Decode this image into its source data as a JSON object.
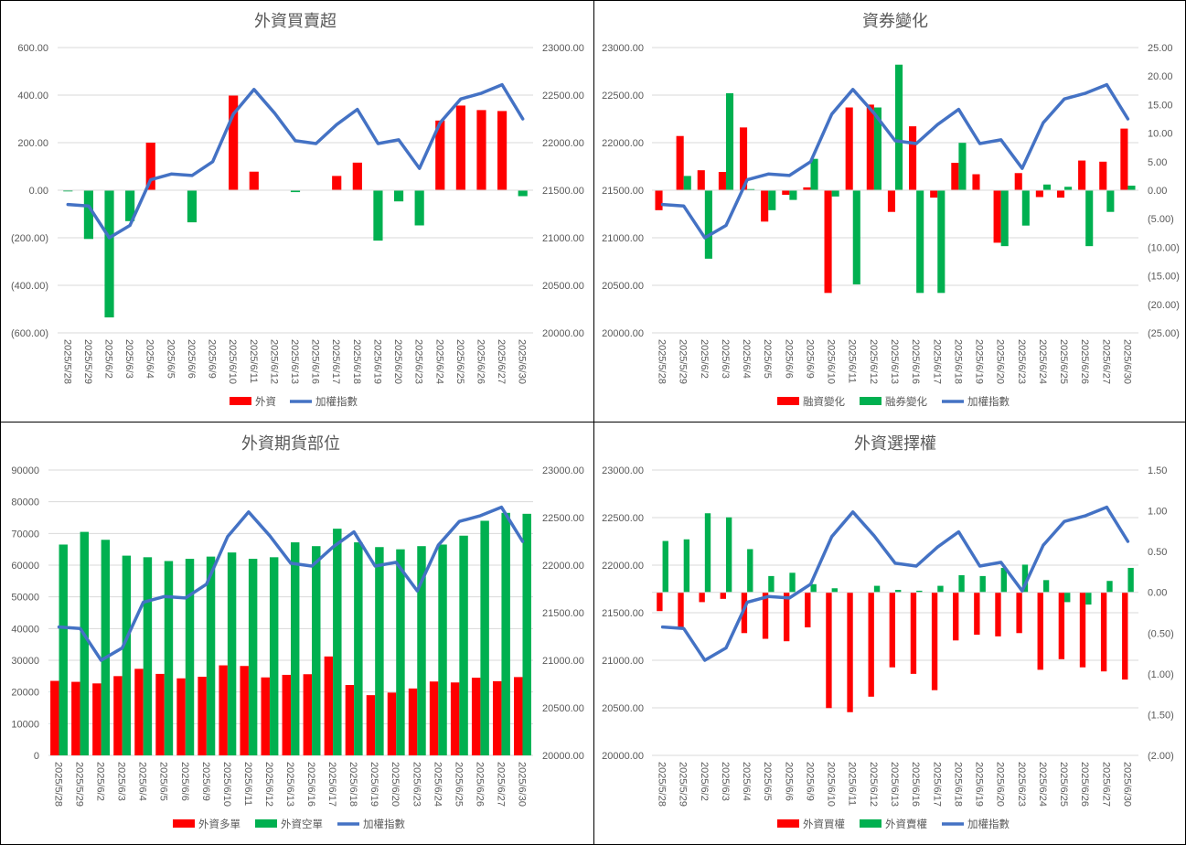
{
  "colors": {
    "red": "#ff0000",
    "green": "#00b050",
    "blue": "#4472c4",
    "grid": "#d9d9d9",
    "text": "#595959"
  },
  "chart_data": [
    {
      "type": "bar",
      "title": "外資買賣超",
      "categories": [
        "2025/5/28",
        "2025/5/29",
        "2025/6/2",
        "2025/6/3",
        "2025/6/4",
        "2025/6/5",
        "2025/6/6",
        "2025/6/9",
        "2025/6/10",
        "2025/6/11",
        "2025/6/12",
        "2025/6/13",
        "2025/6/16",
        "2025/6/17",
        "2025/6/18",
        "2025/6/19",
        "2025/6/20",
        "2025/6/23",
        "2025/6/24",
        "2025/6/25",
        "2025/6/26",
        "2025/6/27",
        "2025/6/30"
      ],
      "series": [
        {
          "name": "外資",
          "kind": "bar",
          "axis": "left",
          "color_rule": "sign",
          "values": [
            -5,
            -205,
            -535,
            -130,
            200,
            0,
            -135,
            0,
            398,
            78,
            0,
            -8,
            0,
            60,
            116,
            -212,
            -47,
            -148,
            293,
            356,
            337,
            333,
            -25
          ]
        },
        {
          "name": "加權指數",
          "kind": "line",
          "axis": "right",
          "color": "#4472c4",
          "values": [
            21350,
            21335,
            21000,
            21130,
            21610,
            21670,
            21655,
            21800,
            22300,
            22560,
            22310,
            22020,
            21990,
            22190,
            22350,
            21990,
            22030,
            21730,
            22210,
            22460,
            22520,
            22610,
            22250
          ]
        }
      ],
      "y_left": {
        "min": -600,
        "max": 600,
        "step": 200,
        "ticks": [
          "(600.00)",
          "(400.00)",
          "(200.00)",
          "0.00",
          "200.00",
          "400.00",
          "600.00"
        ]
      },
      "y_right": {
        "min": 20000,
        "max": 23000,
        "step": 500,
        "ticks": [
          "20000.00",
          "20500.00",
          "21000.00",
          "21500.00",
          "22000.00",
          "22500.00",
          "23000.00"
        ]
      },
      "legend": [
        "外資",
        "加權指數"
      ],
      "legend_position": "bottom",
      "grid": true
    },
    {
      "type": "bar",
      "title": "資券變化",
      "categories": [
        "2025/5/28",
        "2025/5/29",
        "2025/6/2",
        "2025/6/3",
        "2025/6/4",
        "2025/6/5",
        "2025/6/6",
        "2025/6/9",
        "2025/6/10",
        "2025/6/11",
        "2025/6/12",
        "2025/6/13",
        "2025/6/16",
        "2025/6/17",
        "2025/6/18",
        "2025/6/19",
        "2025/6/20",
        "2025/6/23",
        "2025/6/24",
        "2025/6/25",
        "2025/6/26",
        "2025/6/27",
        "2025/6/30"
      ],
      "series": [
        {
          "name": "融資變化",
          "kind": "bar",
          "axis": "right",
          "color": "#ff0000",
          "values": [
            -3.5,
            9.5,
            3.5,
            3.2,
            11,
            -5.5,
            -0.8,
            0.5,
            -18,
            14.5,
            15,
            -3.8,
            11.2,
            -1.3,
            4.8,
            2.8,
            -9.2,
            3,
            -1.2,
            -1.3,
            5.2,
            5,
            10.8
          ]
        },
        {
          "name": "融券變化",
          "kind": "bar",
          "axis": "right",
          "color": "#00b050",
          "values": [
            0,
            2.5,
            -12,
            17,
            0.2,
            -3.5,
            -1.7,
            5.5,
            -1.1,
            -16.5,
            14.5,
            22,
            -18,
            -18,
            8.3,
            0,
            -9.8,
            -6.2,
            1,
            0.6,
            -9.8,
            -3.8,
            0.8
          ]
        },
        {
          "name": "加權指數",
          "kind": "line",
          "axis": "left",
          "color": "#4472c4",
          "values": [
            21350,
            21335,
            21000,
            21130,
            21610,
            21670,
            21655,
            21800,
            22300,
            22560,
            22310,
            22020,
            21990,
            22190,
            22350,
            21990,
            22030,
            21730,
            22210,
            22460,
            22520,
            22610,
            22250
          ]
        }
      ],
      "y_left": {
        "min": 20000,
        "max": 23000,
        "step": 500,
        "ticks": [
          "20000.00",
          "20500.00",
          "21000.00",
          "21500.00",
          "22000.00",
          "22500.00",
          "23000.00"
        ]
      },
      "y_right": {
        "min": -25,
        "max": 25,
        "step": 5,
        "ticks": [
          "(25.00)",
          "(20.00)",
          "(15.00)",
          "(10.00)",
          "(5.00)",
          "0.00",
          "5.00",
          "10.00",
          "15.00",
          "20.00",
          "25.00"
        ]
      },
      "legend": [
        "融資變化",
        "融券變化",
        "加權指數"
      ],
      "legend_position": "bottom",
      "grid": true
    },
    {
      "type": "bar",
      "title": "外資期貨部位",
      "categories": [
        "2025/5/28",
        "2025/5/29",
        "2025/6/2",
        "2025/6/3",
        "2025/6/4",
        "2025/6/5",
        "2025/6/6",
        "2025/6/9",
        "2025/6/10",
        "2025/6/11",
        "2025/6/12",
        "2025/6/13",
        "2025/6/16",
        "2025/6/17",
        "2025/6/18",
        "2025/6/19",
        "2025/6/20",
        "2025/6/23",
        "2025/6/24",
        "2025/6/25",
        "2025/6/26",
        "2025/6/27",
        "2025/6/30"
      ],
      "series": [
        {
          "name": "外資多單",
          "kind": "bar",
          "axis": "left",
          "color": "#ff0000",
          "values": [
            23500,
            23200,
            22700,
            25000,
            27300,
            25700,
            24300,
            24800,
            28400,
            28200,
            24600,
            25400,
            25600,
            31200,
            22200,
            19000,
            19800,
            21100,
            23300,
            23000,
            24500,
            23400,
            24700
          ]
        },
        {
          "name": "外資空單",
          "kind": "bar",
          "axis": "left",
          "color": "#00b050",
          "values": [
            66500,
            70500,
            68000,
            63000,
            62500,
            61300,
            62000,
            62700,
            64000,
            62000,
            62500,
            67200,
            66000,
            71500,
            67200,
            65700,
            65000,
            66000,
            66500,
            69300,
            74000,
            76500,
            76200
          ]
        },
        {
          "name": "加權指數",
          "kind": "line",
          "axis": "right",
          "color": "#4472c4",
          "values": [
            21350,
            21335,
            21000,
            21130,
            21610,
            21670,
            21655,
            21800,
            22300,
            22560,
            22310,
            22020,
            21990,
            22190,
            22350,
            21990,
            22030,
            21730,
            22210,
            22460,
            22520,
            22610,
            22250
          ]
        }
      ],
      "y_left": {
        "min": 0,
        "max": 90000,
        "step": 10000,
        "ticks": [
          "0",
          "10000",
          "20000",
          "30000",
          "40000",
          "50000",
          "60000",
          "70000",
          "80000",
          "90000"
        ]
      },
      "y_right": {
        "min": 20000,
        "max": 23000,
        "step": 500,
        "ticks": [
          "20000.00",
          "20500.00",
          "21000.00",
          "21500.00",
          "22000.00",
          "22500.00",
          "23000.00"
        ]
      },
      "legend": [
        "外資多單",
        "外資空單",
        "加權指數"
      ],
      "legend_position": "bottom",
      "grid": true
    },
    {
      "type": "bar",
      "title": "外資選擇權",
      "categories": [
        "2025/5/28",
        "2025/5/29",
        "2025/6/2",
        "2025/6/3",
        "2025/6/4",
        "2025/6/5",
        "2025/6/6",
        "2025/6/9",
        "2025/6/10",
        "2025/6/11",
        "2025/6/12",
        "2025/6/13",
        "2025/6/16",
        "2025/6/17",
        "2025/6/18",
        "2025/6/19",
        "2025/6/20",
        "2025/6/23",
        "2025/6/24",
        "2025/6/25",
        "2025/6/26",
        "2025/6/27",
        "2025/6/30"
      ],
      "series": [
        {
          "name": "外資買權",
          "kind": "bar",
          "axis": "right",
          "color": "#ff0000",
          "values": [
            -0.23,
            -0.45,
            -0.12,
            -0.08,
            -0.5,
            -0.57,
            -0.6,
            -0.43,
            -1.42,
            -1.47,
            -1.28,
            -0.92,
            -1.0,
            -1.2,
            -0.59,
            -0.52,
            -0.54,
            -0.5,
            -0.95,
            -0.82,
            -0.92,
            -0.97,
            -1.07
          ]
        },
        {
          "name": "外資賣權",
          "kind": "bar",
          "axis": "right",
          "color": "#00b050",
          "values": [
            0.63,
            0.65,
            0.97,
            0.92,
            0.53,
            0.2,
            0.24,
            0.1,
            0.05,
            0,
            0.08,
            0.03,
            0.02,
            0.08,
            0.21,
            0.2,
            0.3,
            0.34,
            0.15,
            -0.12,
            -0.15,
            0.14,
            0.3
          ]
        },
        {
          "name": "加權指數",
          "kind": "line",
          "axis": "left",
          "color": "#4472c4",
          "values": [
            21350,
            21335,
            21000,
            21130,
            21610,
            21670,
            21655,
            21800,
            22300,
            22560,
            22310,
            22020,
            21990,
            22190,
            22350,
            21990,
            22030,
            21730,
            22210,
            22460,
            22520,
            22610,
            22250
          ]
        }
      ],
      "y_left": {
        "min": 20000,
        "max": 23000,
        "step": 500,
        "ticks": [
          "20000.00",
          "20500.00",
          "21000.00",
          "21500.00",
          "22000.00",
          "22500.00",
          "23000.00"
        ]
      },
      "y_right": {
        "min": -2,
        "max": 1.5,
        "step": 0.5,
        "ticks": [
          "(2.00)",
          "(1.50)",
          "(1.00)",
          "(0.50)",
          "0.00",
          "0.50",
          "1.00",
          "1.50"
        ]
      },
      "legend": [
        "外資買權",
        "外資賣權",
        "加權指數"
      ],
      "legend_position": "bottom",
      "grid": true
    }
  ]
}
